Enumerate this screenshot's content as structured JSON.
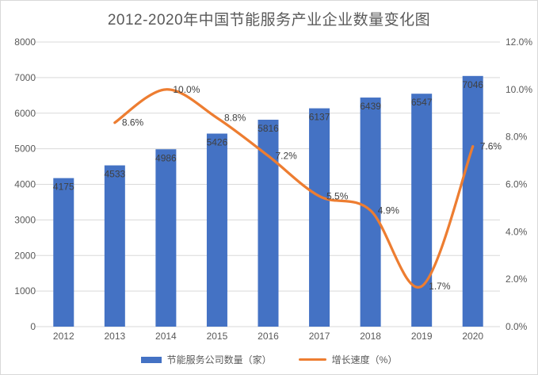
{
  "title": "2012-2020年中国节能服务产业企业数量变化图",
  "legend": {
    "bar_label": "节能服务公司数量（家）",
    "line_label": "增长速度（%）"
  },
  "colors": {
    "bar": "#4472C4",
    "line": "#ED7D31",
    "grid": "#D9D9D9",
    "border": "#D9D9D9",
    "axis_text": "#595959",
    "data_label_text": "#404040",
    "title_text": "#595959"
  },
  "chart_data": {
    "type": "bar",
    "combo": "bar+line",
    "title": "2012-2020年中国节能服务产业企业数量变化图",
    "categories": [
      "2012",
      "2013",
      "2014",
      "2015",
      "2016",
      "2017",
      "2018",
      "2019",
      "2020"
    ],
    "series": [
      {
        "name": "节能服务公司数量（家）",
        "type": "bar",
        "axis": "left",
        "values": [
          4175,
          4533,
          4986,
          5426,
          5816,
          6137,
          6439,
          6547,
          7046
        ],
        "data_labels": [
          "4175",
          "4533",
          "4986",
          "5426",
          "5816",
          "6137",
          "6439",
          "6547",
          "7046"
        ]
      },
      {
        "name": "增长速度（%）",
        "type": "line",
        "axis": "right",
        "smooth": true,
        "values": [
          null,
          8.6,
          10.0,
          8.8,
          7.2,
          5.5,
          4.9,
          1.7,
          7.6
        ],
        "data_labels": [
          null,
          "8.6%",
          "10.0%",
          "8.8%",
          "7.2%",
          "5.5%",
          "4.9%",
          "1.7%",
          "7.6%"
        ]
      }
    ],
    "left_axis": {
      "min": 0,
      "max": 8000,
      "step": 1000,
      "tick_labels": [
        "0",
        "1000",
        "2000",
        "3000",
        "4000",
        "5000",
        "6000",
        "7000",
        "8000"
      ]
    },
    "right_axis": {
      "min": 0,
      "max": 12,
      "step": 2,
      "tick_labels": [
        "0.0%",
        "2.0%",
        "4.0%",
        "6.0%",
        "8.0%",
        "10.0%",
        "12.0%"
      ]
    },
    "grid": true,
    "legend_position": "bottom"
  }
}
